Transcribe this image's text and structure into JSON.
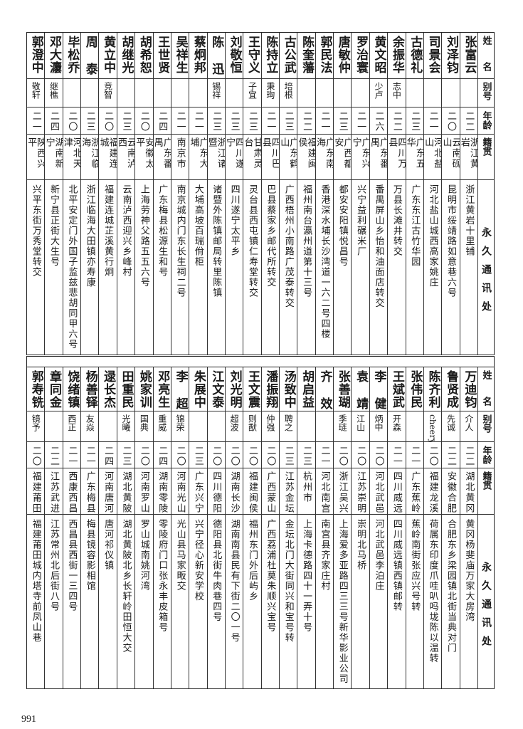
{
  "headers": {
    "name": "姓名",
    "alias": "别号",
    "age": "年龄",
    "origin": "籍贯",
    "address": "永久通讯处"
  },
  "top_table": [
    {
      "name": "张富云",
      "alias": "",
      "age": "二二",
      "origin": "浙江黄岩",
      "address": "浙江黄岩十里铺"
    },
    {
      "name": "刘泽钧",
      "alias": "",
      "age": "二〇",
      "origin": "云南砚山",
      "address": "昆明市绥靖路如意巷六号"
    },
    {
      "name": "司景会",
      "alias": "",
      "age": "二一",
      "origin": "河北盐山",
      "address": "河北盐山城西高家姚庄"
    },
    {
      "name": "古德礼",
      "alias": "",
      "age": "二三",
      "origin": "广东五华",
      "address": "广东东江古竹华园"
    },
    {
      "name": "余振华",
      "alias": "志中",
      "age": "二二",
      "origin": "四川万县",
      "address": "万县长滩井转交"
    },
    {
      "name": "黄文昭",
      "alias": "少卢",
      "age": "二六",
      "origin": "广东番禺",
      "address": "番禺屏山乡怡和油面店转交"
    },
    {
      "name": "罗治寰",
      "alias": "",
      "age": "二一",
      "origin": "广东兴宁",
      "address": "兴宁益利碾米厂"
    },
    {
      "name": "唐敏仲",
      "alias": "",
      "age": "二三",
      "origin": "广西都安",
      "address": "都安安阳镇悦昌号"
    },
    {
      "name": "郭民法",
      "alias": "",
      "age": "二一",
      "origin": "广东南海",
      "address": "香港深水埔长沙湾道一六二号四楼"
    },
    {
      "name": "陈奎藩",
      "alias": "",
      "age": "二二",
      "origin": "福建闽侯",
      "address": "福州南台瀛州道第十三号"
    },
    {
      "name": "古公武",
      "alias": "培根",
      "age": "二三",
      "origin": "广东鹤山",
      "address": "广西梧州小南路广茂泰转交"
    },
    {
      "name": "陈持立",
      "alias": "秉珣",
      "age": "二一",
      "origin": "四川巴县",
      "address": "巴县蔡家乡邮代所转交"
    },
    {
      "name": "王守义",
      "alias": "子宜",
      "age": "二三",
      "origin": "甘肃灵台",
      "address": "灵台县西屯镇仁寿堂转交"
    },
    {
      "name": "刘敬恒",
      "alias": "",
      "age": "二三",
      "origin": "四川遂宁",
      "address": "四川遂宁太平乡"
    },
    {
      "name": "陈迅",
      "alias": "锡祥",
      "age": "二三",
      "origin": "浙江诸暨",
      "address": "诸暨外陈镇邮局转里陈镇"
    },
    {
      "name": "蔡炯邦",
      "alias": "",
      "age": "二一",
      "origin": "广东大埔",
      "address": "大埔高坡百瑞佾柜"
    },
    {
      "name": "吴祥生",
      "alias": "",
      "age": "二一",
      "origin": "南京市",
      "address": "南京城内门东长生祠二号"
    },
    {
      "name": "王世贤",
      "alias": "",
      "age": "二四",
      "origin": "广东番禺",
      "address": "广东梅县松源生和号"
    },
    {
      "name": "胡希恕",
      "alias": "",
      "age": "二〇",
      "origin": "安徽太平",
      "address": "上海劳神父路五五六号"
    },
    {
      "name": "胡继光",
      "alias": "",
      "age": "二三",
      "origin": "云南泸西",
      "address": "云南泸西迎兴乡峰村"
    },
    {
      "name": "黄立中",
      "alias": "竞智",
      "age": "二〇",
      "origin": "福建连城",
      "address": "福建连城芷溪黄行炯"
    },
    {
      "name": "周泰",
      "alias": "",
      "age": "二三",
      "origin": "浙江临海",
      "address": "浙江临海大田镇亦寿康"
    },
    {
      "name": "毕松乔",
      "alias": "",
      "age": "二〇",
      "origin": "河北天津",
      "address": "北平安定门外国子监兹悲胡同甲六号"
    },
    {
      "name": "邓大灋",
      "alias": "继樵",
      "age": "二四",
      "origin": "湖南新宁",
      "address": "新宁县正街大生号"
    },
    {
      "name": "郭澄中",
      "alias": "敬轩",
      "age": "二一",
      "origin": "陕西兴平",
      "address": "兴平东街万秀堂转交"
    }
  ],
  "bottom_table": [
    {
      "name": "万迪钧",
      "alias": "介人",
      "age": "二二",
      "origin": "湖北黄冈",
      "address": "黄冈杨斐庙万家大房湾"
    },
    {
      "name": "鲁贤成",
      "alias": "先诚",
      "age": "二二",
      "origin": "安徽合肥",
      "address": "合肥东乡梁园镇北街当典对门"
    },
    {
      "name": "陈齐利",
      "alias": "cheery",
      "age": "二〇",
      "origin": "福建龙溪",
      "address": "荷属东印度爪哇叭吗垅陈以温转"
    },
    {
      "name": "张伟民",
      "alias": "",
      "age": "二一",
      "origin": "广东蕉岭",
      "address": "蕉岭南街张应兴号转"
    },
    {
      "name": "王斌武",
      "alias": "开森",
      "age": "二一",
      "origin": "四川威远",
      "address": "四川威远镇西镇邮转"
    },
    {
      "name": "李健",
      "alias": "炳中",
      "age": "二〇",
      "origin": "河北武邑",
      "address": "河北武邑李泊庄"
    },
    {
      "name": "袁靖",
      "alias": "江山",
      "age": "二〇",
      "origin": "江苏崇明",
      "address": "崇明北马桥"
    },
    {
      "name": "张善瑚",
      "alias": "季琏",
      "age": "二〇",
      "origin": "浙江吴兴",
      "address": "上海爱多亚路四三三号新华影业公司"
    },
    {
      "name": "齐效",
      "alias": "",
      "age": "二一",
      "origin": "河北南宫",
      "address": "南宫县齐家庄村"
    },
    {
      "name": "胡启益",
      "alias": "",
      "age": "二三",
      "origin": "杭州市",
      "address": "上海卡德路四十一弄十号"
    },
    {
      "name": "汤致中",
      "alias": "聘之",
      "age": "二三",
      "origin": "江苏金坛",
      "address": "金坛北门大街同兴和宝号转"
    },
    {
      "name": "潘振翔",
      "alias": "仲强",
      "age": "二〇",
      "origin": "广西蒙山",
      "address": "广西荔浦杜莫朱顺兴宝号"
    },
    {
      "name": "王文震",
      "alias": "则猷",
      "age": "二〇",
      "origin": "福建闽侯",
      "address": "福州东门外后屿乡"
    },
    {
      "name": "刘光明",
      "alias": "超波",
      "age": "二〇",
      "origin": "湖南长沙",
      "address": "湖南南县民有下街二〇一号"
    },
    {
      "name": "江文泰",
      "alias": "",
      "age": "二〇",
      "origin": "四川德阳",
      "address": "德阳县北街牛肉巷四号"
    },
    {
      "name": "朱展中",
      "alias": "",
      "age": "二三",
      "origin": "广东兴宁",
      "address": "兴宁径心新安学校"
    },
    {
      "name": "李超",
      "alias": "锦荣",
      "age": "二〇",
      "origin": "河南光山",
      "address": "光山县马家畈交"
    },
    {
      "name": "邓亮生",
      "alias": "重威",
      "age": "二四",
      "origin": "湖南零陵",
      "address": "零陵府门口张永丰皮箱号"
    },
    {
      "name": "姚家训",
      "alias": "国典",
      "age": "二〇",
      "origin": "河南罗山",
      "address": "罗山城南姚河湾"
    },
    {
      "name": "田重民",
      "alias": "光曦",
      "age": "二三",
      "origin": "湖北黄陂",
      "address": "湖北黄陂北乡长轩岭田恒大交"
    },
    {
      "name": "逯长杰",
      "alias": "",
      "age": "二四",
      "origin": "河南唐河",
      "address": "唐河祁仪镇"
    },
    {
      "name": "杨善铎",
      "alias": "友焱",
      "age": "二一",
      "origin": "广东梅县",
      "address": "梅县镜容影相馆"
    },
    {
      "name": "饶绪镇",
      "alias": "西正",
      "age": "二一",
      "origin": "西康西昌",
      "address": "西昌县西街一三四号"
    },
    {
      "name": "章同金",
      "alias": "",
      "age": "二二",
      "origin": "江苏武进",
      "address": "江苏常州北后街八号"
    },
    {
      "name": "郭寿铣",
      "alias": "镜予",
      "age": "二〇",
      "origin": "福建莆田",
      "address": "福建莆田城内塔寺前凤山巷"
    }
  ],
  "page_number": "991"
}
